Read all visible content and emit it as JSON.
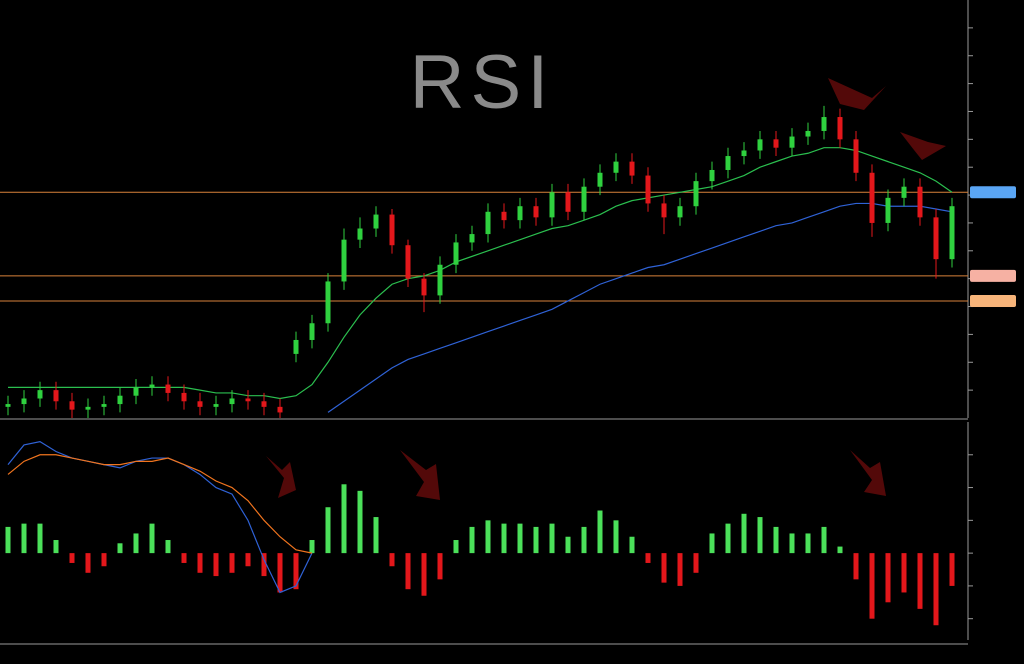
{
  "chart_data": [
    {
      "type": "candlestick",
      "title": "RSI",
      "open": [
        0.4,
        0.5,
        0.7,
        1.0,
        0.6,
        0.3,
        0.4,
        0.5,
        0.8,
        1.1,
        1.2,
        0.9,
        0.6,
        0.4,
        0.5,
        0.7,
        0.6,
        0.4,
        2.3,
        2.8,
        3.4,
        4.9,
        6.4,
        6.8,
        7.3,
        6.2,
        5.0,
        4.4,
        5.5,
        6.3,
        6.6,
        7.4,
        7.1,
        7.6,
        7.2,
        8.1,
        7.4,
        8.3,
        8.8,
        9.2,
        8.7,
        7.7,
        7.2,
        7.6,
        8.5,
        8.9,
        9.4,
        9.6,
        10.0,
        9.7,
        10.1,
        10.3,
        10.8,
        10.0,
        8.8,
        7.0,
        7.9,
        8.3,
        7.2,
        5.7
      ],
      "high": [
        0.8,
        1.0,
        1.3,
        1.3,
        0.9,
        0.7,
        0.8,
        1.1,
        1.4,
        1.5,
        1.5,
        1.2,
        0.9,
        0.8,
        1.0,
        1.0,
        0.9,
        0.7,
        3.1,
        3.7,
        5.2,
        6.8,
        7.2,
        7.6,
        7.5,
        6.4,
        5.2,
        5.8,
        6.6,
        6.9,
        7.7,
        7.7,
        7.9,
        7.9,
        8.4,
        8.4,
        8.6,
        9.1,
        9.5,
        9.5,
        9.0,
        8.0,
        7.9,
        8.8,
        9.2,
        9.7,
        9.9,
        10.3,
        10.3,
        10.4,
        10.6,
        11.2,
        11.1,
        10.3,
        9.1,
        8.2,
        8.6,
        8.6,
        7.5,
        7.9
      ],
      "low": [
        0.1,
        0.2,
        0.4,
        0.3,
        0.0,
        0.0,
        0.1,
        0.2,
        0.5,
        0.8,
        0.6,
        0.3,
        0.1,
        0.1,
        0.2,
        0.3,
        0.1,
        0.0,
        2.0,
        2.5,
        3.1,
        4.6,
        6.1,
        6.5,
        5.9,
        4.7,
        3.8,
        4.1,
        5.2,
        6.0,
        6.3,
        6.8,
        6.8,
        6.9,
        6.9,
        7.1,
        7.1,
        8.0,
        8.5,
        8.4,
        7.4,
        6.6,
        6.9,
        7.3,
        8.2,
        8.6,
        9.1,
        9.3,
        9.4,
        9.4,
        9.8,
        10.0,
        9.7,
        8.5,
        6.5,
        6.7,
        7.6,
        6.9,
        5.0,
        5.4
      ],
      "close": [
        0.5,
        0.7,
        1.0,
        0.6,
        0.3,
        0.4,
        0.5,
        0.8,
        1.1,
        1.2,
        0.9,
        0.6,
        0.4,
        0.5,
        0.7,
        0.6,
        0.4,
        0.2,
        2.8,
        3.4,
        4.9,
        6.4,
        6.8,
        7.3,
        6.2,
        5.0,
        4.4,
        5.5,
        6.3,
        6.6,
        7.4,
        7.1,
        7.6,
        7.2,
        8.1,
        7.4,
        8.3,
        8.8,
        9.2,
        8.7,
        7.7,
        7.2,
        7.6,
        8.5,
        8.9,
        9.4,
        9.6,
        10.0,
        9.7,
        10.1,
        10.3,
        10.8,
        10.0,
        8.8,
        7.0,
        7.9,
        8.3,
        7.2,
        5.7,
        7.6
      ],
      "up_color": "#2fd13f",
      "down_color": "#e3171b",
      "series": [
        {
          "color": "#2bbf4f",
          "values": [
            1.1,
            1.1,
            1.1,
            1.1,
            1.1,
            1.1,
            1.1,
            1.1,
            1.1,
            1.1,
            1.1,
            1.1,
            1.0,
            0.9,
            0.9,
            0.8,
            0.8,
            0.7,
            0.8,
            1.2,
            2.0,
            2.9,
            3.7,
            4.3,
            4.8,
            5.0,
            5.1,
            5.3,
            5.6,
            5.8,
            6.0,
            6.2,
            6.4,
            6.6,
            6.8,
            6.9,
            7.1,
            7.3,
            7.6,
            7.8,
            7.9,
            8.0,
            8.1,
            8.2,
            8.3,
            8.5,
            8.7,
            9.0,
            9.2,
            9.4,
            9.5,
            9.7,
            9.7,
            9.6,
            9.4,
            9.2,
            9.0,
            8.8,
            8.5,
            8.1
          ]
        },
        {
          "color": "#2f62d6",
          "values": [
            null,
            null,
            null,
            null,
            null,
            null,
            null,
            null,
            null,
            null,
            null,
            null,
            null,
            null,
            null,
            null,
            null,
            null,
            null,
            null,
            0.2,
            0.6,
            1.0,
            1.4,
            1.8,
            2.1,
            2.3,
            2.5,
            2.7,
            2.9,
            3.1,
            3.3,
            3.5,
            3.7,
            3.9,
            4.2,
            4.5,
            4.8,
            5.0,
            5.2,
            5.4,
            5.5,
            5.7,
            5.9,
            6.1,
            6.3,
            6.5,
            6.7,
            6.9,
            7.0,
            7.2,
            7.4,
            7.6,
            7.7,
            7.7,
            7.6,
            7.6,
            7.6,
            7.5,
            7.4
          ]
        }
      ],
      "levels": [
        8.1,
        5.1,
        4.2
      ],
      "level_color": "#d9823b",
      "level_tag_colors": [
        "#5aa6f5",
        "#f6b1a3",
        "#f7b47a"
      ],
      "ylim": [
        0,
        15
      ],
      "yticks": [
        1,
        2,
        3,
        4,
        5,
        6,
        7,
        8,
        9,
        10,
        11,
        12,
        13,
        14
      ],
      "grid": false
    },
    {
      "type": "bar",
      "values": [
        0.8,
        0.9,
        0.9,
        0.4,
        -0.3,
        -0.6,
        -0.4,
        0.3,
        0.6,
        0.9,
        0.4,
        -0.3,
        -0.6,
        -0.7,
        -0.6,
        -0.4,
        -0.7,
        -1.2,
        -1.1,
        0.4,
        1.4,
        2.1,
        1.9,
        1.1,
        -0.4,
        -1.1,
        -1.3,
        -0.8,
        0.4,
        0.8,
        1.0,
        0.9,
        0.9,
        0.8,
        0.9,
        0.5,
        0.8,
        1.3,
        1.0,
        0.5,
        -0.3,
        -0.9,
        -1.0,
        -0.6,
        0.6,
        0.9,
        1.2,
        1.1,
        0.8,
        0.6,
        0.6,
        0.8,
        0.2,
        -0.8,
        -2.0,
        -1.5,
        -1.2,
        -1.7,
        -2.2,
        -1.0
      ],
      "up_color": "#4be05a",
      "down_color": "#e3171b",
      "series": [
        {
          "color": "#2f62d6",
          "values": [
            2.7,
            3.3,
            3.4,
            3.1,
            2.9,
            2.8,
            2.7,
            2.6,
            2.8,
            2.9,
            2.9,
            2.7,
            2.4,
            2.0,
            1.8,
            1.0,
            -0.2,
            -1.2,
            -1.0,
            0.0,
            null,
            null,
            null,
            null,
            null,
            null,
            null,
            null,
            null,
            null,
            null,
            null,
            null,
            null,
            null,
            null,
            null,
            null,
            null,
            null,
            null,
            null,
            null,
            null,
            null,
            null,
            null,
            null,
            null,
            null,
            null,
            null,
            null,
            null,
            null,
            null,
            null,
            null,
            null,
            null
          ]
        },
        {
          "color": "#f0741e",
          "values": [
            2.4,
            2.8,
            3.0,
            3.0,
            2.9,
            2.8,
            2.7,
            2.7,
            2.8,
            2.8,
            2.9,
            2.7,
            2.5,
            2.2,
            2.0,
            1.6,
            1.0,
            0.5,
            0.1,
            0.0,
            null,
            null,
            null,
            null,
            null,
            null,
            null,
            null,
            null,
            null,
            null,
            null,
            null,
            null,
            null,
            null,
            null,
            null,
            null,
            null,
            null,
            null,
            null,
            null,
            null,
            null,
            null,
            null,
            null,
            null,
            null,
            null,
            null,
            null,
            null,
            null,
            null,
            null,
            null,
            null
          ]
        }
      ],
      "ylim": [
        -2.65,
        4
      ],
      "yticks": [
        -2,
        -1,
        0,
        1,
        2,
        3
      ],
      "grid": false
    }
  ]
}
